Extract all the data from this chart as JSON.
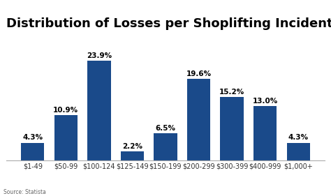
{
  "title": "Distribution of Losses per Shoplifting Incident",
  "categories": [
    "$1-49",
    "$50-99",
    "$100-124",
    "$125-149",
    "$150-199",
    "$200-299",
    "$300-399",
    "$400-999",
    "$1,000+"
  ],
  "values": [
    4.3,
    10.9,
    23.9,
    2.2,
    6.5,
    19.6,
    15.2,
    13.0,
    4.3
  ],
  "labels": [
    "4.3%",
    "10.9%",
    "23.9%",
    "2.2%",
    "6.5%",
    "19.6%",
    "15.2%",
    "13.0%",
    "4.3%"
  ],
  "bar_color": "#1a4a8a",
  "background_color": "#ffffff",
  "title_fontsize": 13,
  "label_fontsize": 7.5,
  "tick_fontsize": 7,
  "source_text": "Source: Statista",
  "source_fontsize": 5.5,
  "ylim": [
    0,
    30
  ]
}
